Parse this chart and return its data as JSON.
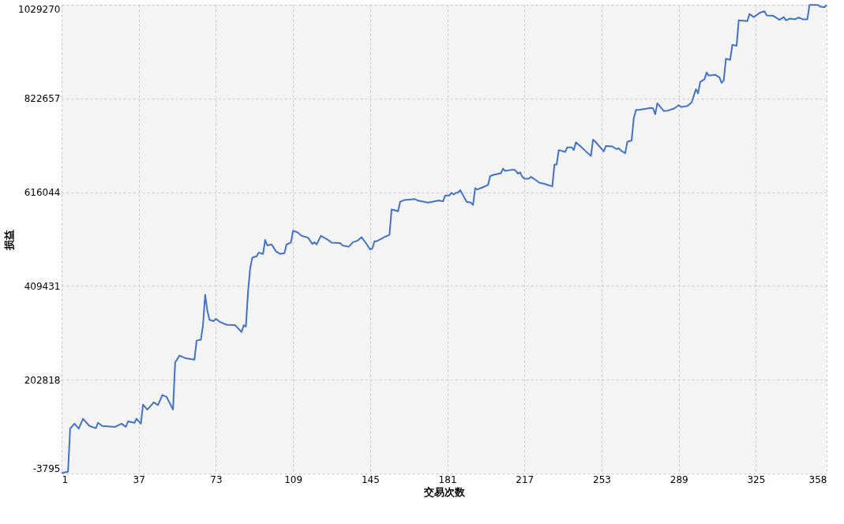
{
  "chart_data": {
    "type": "line",
    "xlabel": "交易次数",
    "ylabel": "损益",
    "xlim": [
      1,
      358
    ],
    "xticks": [
      1,
      37,
      73,
      109,
      145,
      181,
      217,
      253,
      289,
      325,
      358
    ],
    "ylim": [
      -3795,
      1029270
    ],
    "yticks": [
      -3795,
      202818,
      409431,
      616044,
      822657,
      1029270
    ],
    "grid": true,
    "legend": false,
    "marker": "none",
    "line_style": "solid",
    "series": [
      {
        "color": "#4472c4",
        "x": [
          1,
          4,
          5,
          7,
          9,
          11,
          14,
          17,
          18,
          20,
          26,
          29,
          31,
          32,
          35,
          36,
          38,
          39,
          41,
          44,
          46,
          48,
          50,
          53,
          54,
          56,
          59,
          63,
          64,
          66,
          67,
          68,
          69,
          70,
          72,
          73,
          75,
          78,
          82,
          85,
          86,
          87,
          88,
          89,
          90,
          92,
          93,
          95,
          96,
          97,
          99,
          101,
          103,
          105,
          106,
          108,
          109,
          111,
          113,
          116,
          118,
          119,
          120,
          122,
          125,
          127,
          131,
          132,
          135,
          137,
          139,
          141,
          143,
          145,
          146,
          147,
          148,
          150,
          152,
          154,
          155,
          156,
          158,
          159,
          161,
          166,
          167,
          172,
          174,
          177,
          179,
          180,
          182,
          183,
          184,
          185,
          186,
          187,
          190,
          192,
          193,
          194,
          195,
          198,
          200,
          201,
          203,
          206,
          207,
          208,
          212,
          213,
          214,
          215,
          216,
          217,
          219,
          220,
          221,
          224,
          226,
          228,
          230,
          231,
          232,
          233,
          236,
          237,
          239,
          240,
          241,
          243,
          245,
          248,
          249,
          250,
          254,
          255,
          258,
          260,
          261,
          262,
          264,
          265,
          267,
          268,
          269,
          271,
          276,
          277,
          278,
          279,
          282,
          284,
          287,
          289,
          290,
          293,
          295,
          297,
          298,
          299,
          301,
          302,
          303,
          306,
          308,
          309,
          310,
          311,
          313,
          314,
          316,
          317,
          321,
          322,
          324,
          327,
          329,
          330,
          333,
          336,
          338,
          339,
          341,
          343,
          345,
          347,
          349,
          350,
          354,
          355,
          357,
          358
        ],
        "values": [
          -3000,
          0,
          95000,
          106000,
          95000,
          117000,
          101000,
          96000,
          108000,
          101000,
          99000,
          106000,
          99000,
          111000,
          108000,
          117000,
          106000,
          148000,
          137000,
          153000,
          147000,
          169000,
          165000,
          137000,
          241000,
          256000,
          250000,
          247000,
          289000,
          291000,
          324000,
          390000,
          356000,
          335000,
          332000,
          337000,
          330000,
          324000,
          323000,
          308000,
          323000,
          320000,
          396000,
          448000,
          472000,
          475000,
          483000,
          480000,
          511000,
          499000,
          501000,
          486000,
          480000,
          482000,
          501000,
          505000,
          531000,
          528000,
          520000,
          516000,
          502000,
          506000,
          501000,
          520000,
          512000,
          505000,
          504000,
          499000,
          496000,
          506000,
          509000,
          517000,
          504000,
          490000,
          492000,
          508000,
          508000,
          513000,
          518000,
          522000,
          578000,
          577000,
          574000,
          595000,
          599000,
          601000,
          598000,
          593000,
          595000,
          598000,
          596000,
          609000,
          609000,
          615000,
          611000,
          615000,
          615000,
          621000,
          595000,
          593000,
          588000,
          625000,
          622000,
          628000,
          632000,
          652000,
          655000,
          658000,
          668000,
          663000,
          666000,
          663000,
          657000,
          660000,
          650000,
          646000,
          646000,
          650000,
          647000,
          637000,
          635000,
          632000,
          629000,
          677000,
          677000,
          709000,
          705000,
          715000,
          715000,
          709000,
          726000,
          718000,
          709000,
          696000,
          732000,
          728000,
          706000,
          718000,
          717000,
          711000,
          713000,
          708000,
          702000,
          727000,
          730000,
          779000,
          797000,
          798000,
          802000,
          801000,
          788000,
          812000,
          795000,
          796000,
          801000,
          808000,
          804000,
          806000,
          814000,
          843000,
          834000,
          859000,
          865000,
          880000,
          873000,
          875000,
          869000,
          857000,
          863000,
          910000,
          908000,
          941000,
          939000,
          995000,
          993000,
          1009000,
          1002000,
          1012000,
          1015000,
          1006000,
          1005000,
          996000,
          1002000,
          995000,
          999000,
          997000,
          1001000,
          997000,
          997000,
          1029000,
          1029000,
          1025000,
          1024000,
          1029000
        ]
      }
    ]
  }
}
